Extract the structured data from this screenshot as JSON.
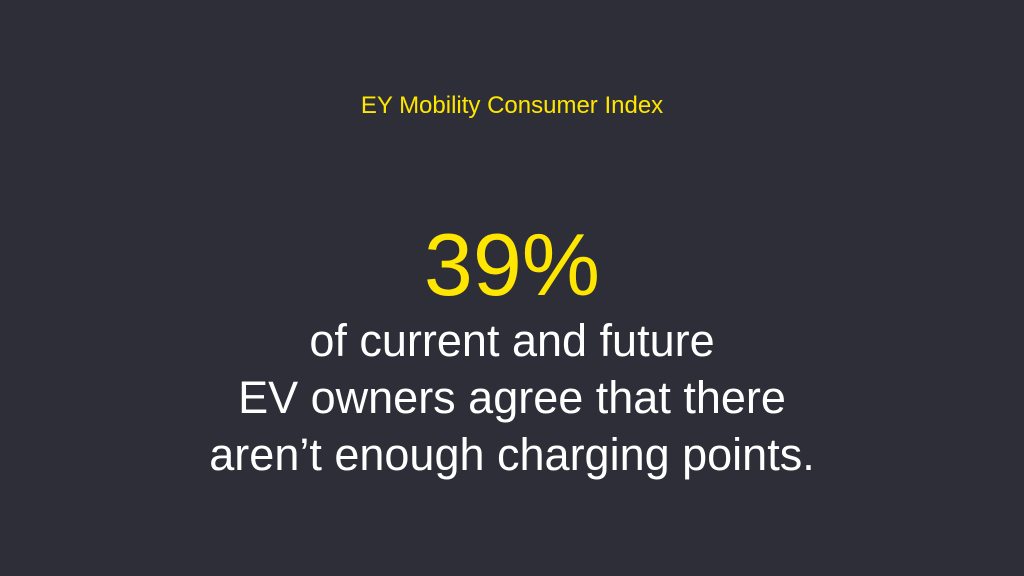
{
  "header": {
    "title": "EY Mobility Consumer Index"
  },
  "stat": {
    "value": "39%",
    "caption_lines": [
      "of current and future",
      "EV owners agree that there",
      "aren’t enough charging points."
    ]
  }
}
